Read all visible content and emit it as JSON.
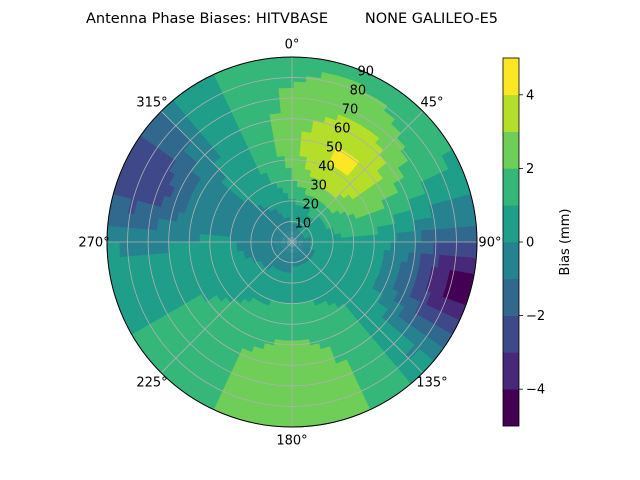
{
  "chart_data": {
    "type": "polar_contour",
    "title": "Antenna Phase Biases: HITVBASE        NONE GALILEO-E5",
    "azimuth_ticks": [
      {
        "deg": 0,
        "label": "0°"
      },
      {
        "deg": 45,
        "label": "45°"
      },
      {
        "deg": 90,
        "label": "90°"
      },
      {
        "deg": 135,
        "label": "135°"
      },
      {
        "deg": 180,
        "label": "180°"
      },
      {
        "deg": 225,
        "label": "225°"
      },
      {
        "deg": 270,
        "label": "270°"
      },
      {
        "deg": 315,
        "label": "315°"
      }
    ],
    "radial_ticks": [
      10,
      20,
      30,
      40,
      50,
      60,
      70,
      80,
      90
    ],
    "radial_range": [
      0,
      90
    ],
    "theta_zero": "N",
    "theta_direction": "clockwise",
    "grid": true,
    "colorbar": {
      "label": "Bias (mm)",
      "range": [
        -5,
        5
      ],
      "ticks": [
        -4,
        -2,
        0,
        2,
        4
      ],
      "levels": [
        -5,
        -4,
        -3,
        -2,
        -1,
        0,
        1,
        2,
        3,
        4,
        5
      ],
      "colors": [
        "#440154",
        "#482878",
        "#3e4989",
        "#31688e",
        "#26828e",
        "#1f9e89",
        "#35b779",
        "#6ece58",
        "#b5de2b",
        "#fde725"
      ]
    },
    "features": [
      {
        "kind": "peak",
        "azimuth": 35,
        "zenith": 40,
        "value": 4.0
      },
      {
        "kind": "trough",
        "azimuth": 105,
        "zenith": 87,
        "value": -4.5
      },
      {
        "kind": "trough",
        "azimuth": 295,
        "zenith": 82,
        "value": -3.0
      },
      {
        "kind": "band",
        "azimuth": 180,
        "zenith": 80,
        "value": 2.8
      },
      {
        "kind": "band",
        "azimuth": 10,
        "zenith": 65,
        "value": 2.0
      },
      {
        "kind": "low",
        "azimuth": 0,
        "zenith": 8,
        "value": -1.2
      }
    ]
  }
}
